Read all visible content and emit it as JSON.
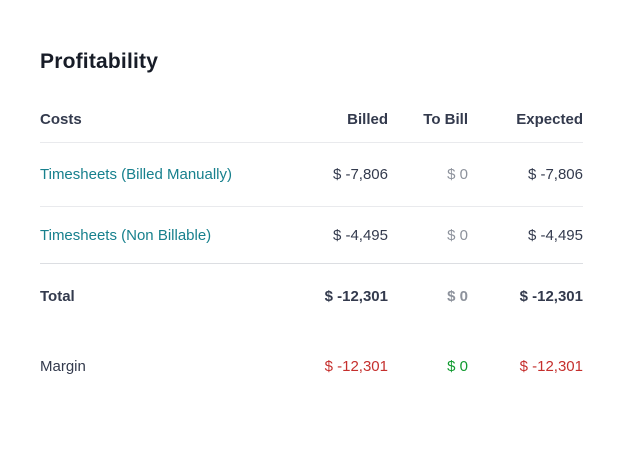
{
  "page": {
    "title": "Profitability"
  },
  "table": {
    "columns": {
      "costs": "Costs",
      "billed": "Billed",
      "to_bill": "To Bill",
      "expected": "Expected"
    },
    "rows": [
      {
        "name": "Timesheets (Billed Manually)",
        "billed": "$ -7,806",
        "to_bill": "$ 0",
        "expected": "$ -7,806"
      },
      {
        "name": "Timesheets (Non Billable)",
        "billed": "$ -4,495",
        "to_bill": "$ 0",
        "expected": "$ -4,495"
      }
    ],
    "total": {
      "label": "Total",
      "billed": "$ -12,301",
      "to_bill": "$ 0",
      "expected": "$ -12,301"
    },
    "margin": {
      "label": "Margin",
      "billed": "$ -12,301",
      "to_bill": "$ 0",
      "expected": "$ -12,301"
    }
  },
  "colors": {
    "title_text": "#171c27",
    "body_text": "#333a4d",
    "link_teal": "#17808d",
    "zero_gray": "#8d929c",
    "negative_red": "#c52f2d",
    "positive_green": "#109a2f",
    "divider_light": "#e9eaed",
    "divider_dark": "#dcdee2"
  }
}
